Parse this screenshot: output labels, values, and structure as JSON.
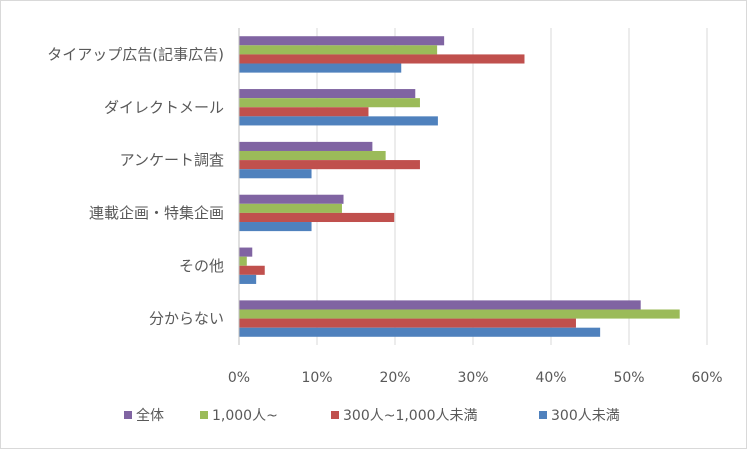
{
  "chart_data": {
    "type": "bar",
    "orientation": "horizontal",
    "categories": [
      "タイアップ広告(記事広告)",
      "ダイレクトメール",
      "アンケート調査",
      "連載企画・特集企画",
      "その他",
      "分からない"
    ],
    "series": [
      {
        "name": "全体",
        "color": "#8064a2",
        "values": [
          26.3,
          22.6,
          17.1,
          13.4,
          1.7,
          51.5
        ]
      },
      {
        "name": "1,000人~",
        "color": "#9bbb59",
        "values": [
          25.4,
          23.2,
          18.8,
          13.2,
          1.0,
          56.5
        ]
      },
      {
        "name": "300人~1,000人未満",
        "color": "#c0504d",
        "values": [
          36.6,
          16.6,
          23.2,
          19.9,
          3.3,
          43.2
        ]
      },
      {
        "name": "300人未満",
        "color": "#4f81bd",
        "values": [
          20.8,
          25.5,
          9.3,
          9.3,
          2.2,
          46.3
        ]
      }
    ],
    "xlim": [
      0,
      60
    ],
    "xticks": [
      "0%",
      "10%",
      "20%",
      "30%",
      "40%",
      "50%",
      "60%"
    ],
    "grid": true,
    "legend_position": "bottom",
    "title": "",
    "xlabel": "",
    "ylabel": ""
  }
}
